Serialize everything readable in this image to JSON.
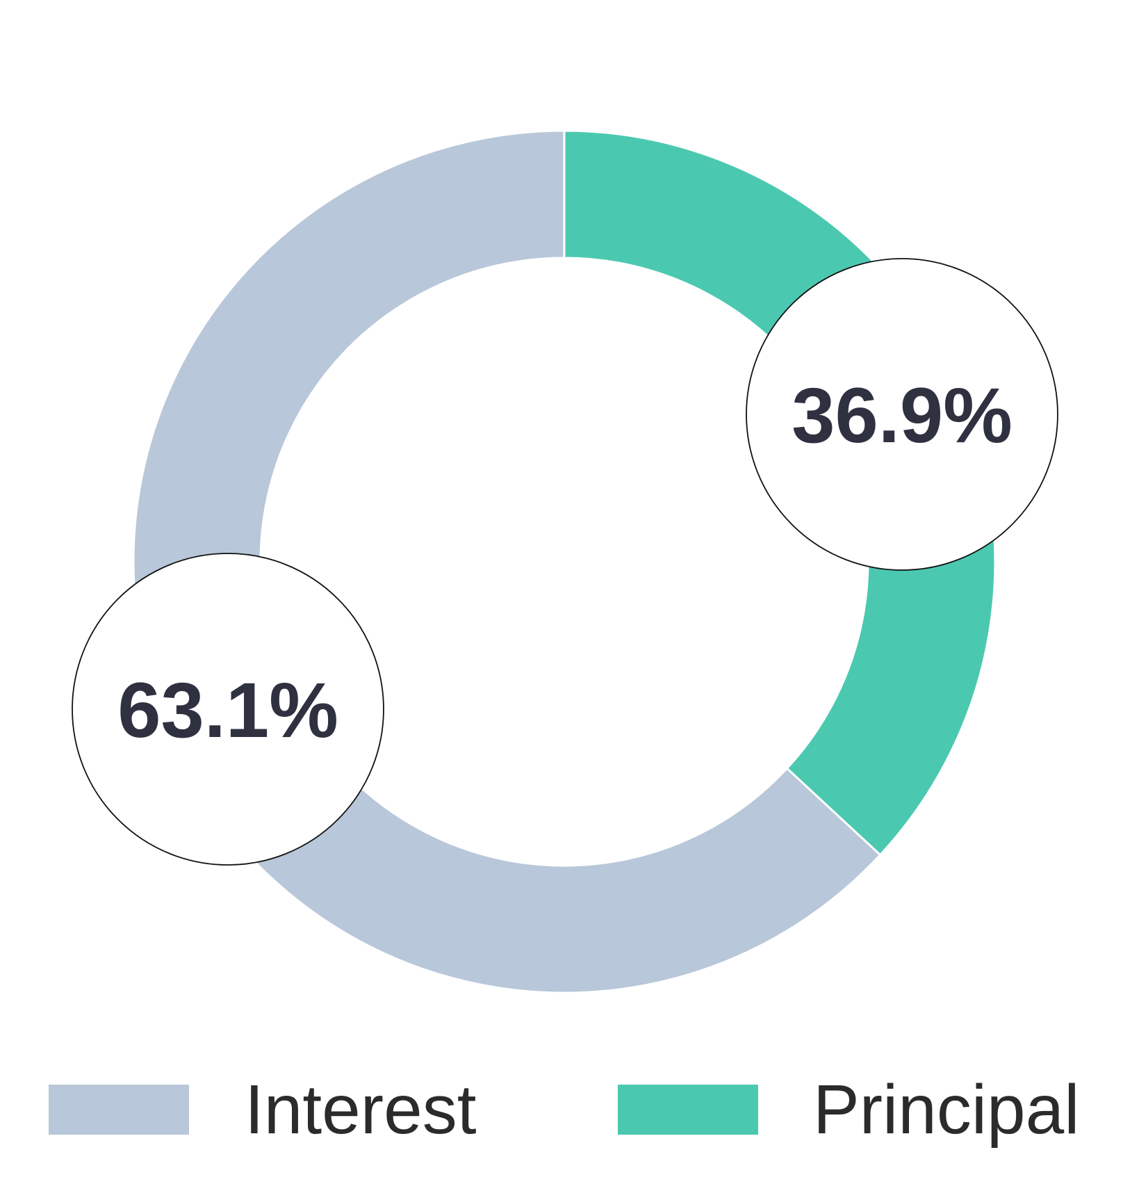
{
  "chart_data": {
    "type": "pie",
    "variant": "donut",
    "start_angle_deg": 0,
    "direction": "clockwise",
    "slices": [
      {
        "label": "Principal",
        "value": 36.9,
        "display": "36.9%",
        "color": "#4bc9b0"
      },
      {
        "label": "Interest",
        "value": 63.1,
        "display": "63.1%",
        "color": "#b8c7d9"
      }
    ],
    "legend": {
      "placement": "bottom",
      "order": [
        "Interest",
        "Principal"
      ]
    },
    "callout_style": {
      "fill": "#ffffff",
      "border": "#111111",
      "text_color": "#2f3140"
    }
  }
}
